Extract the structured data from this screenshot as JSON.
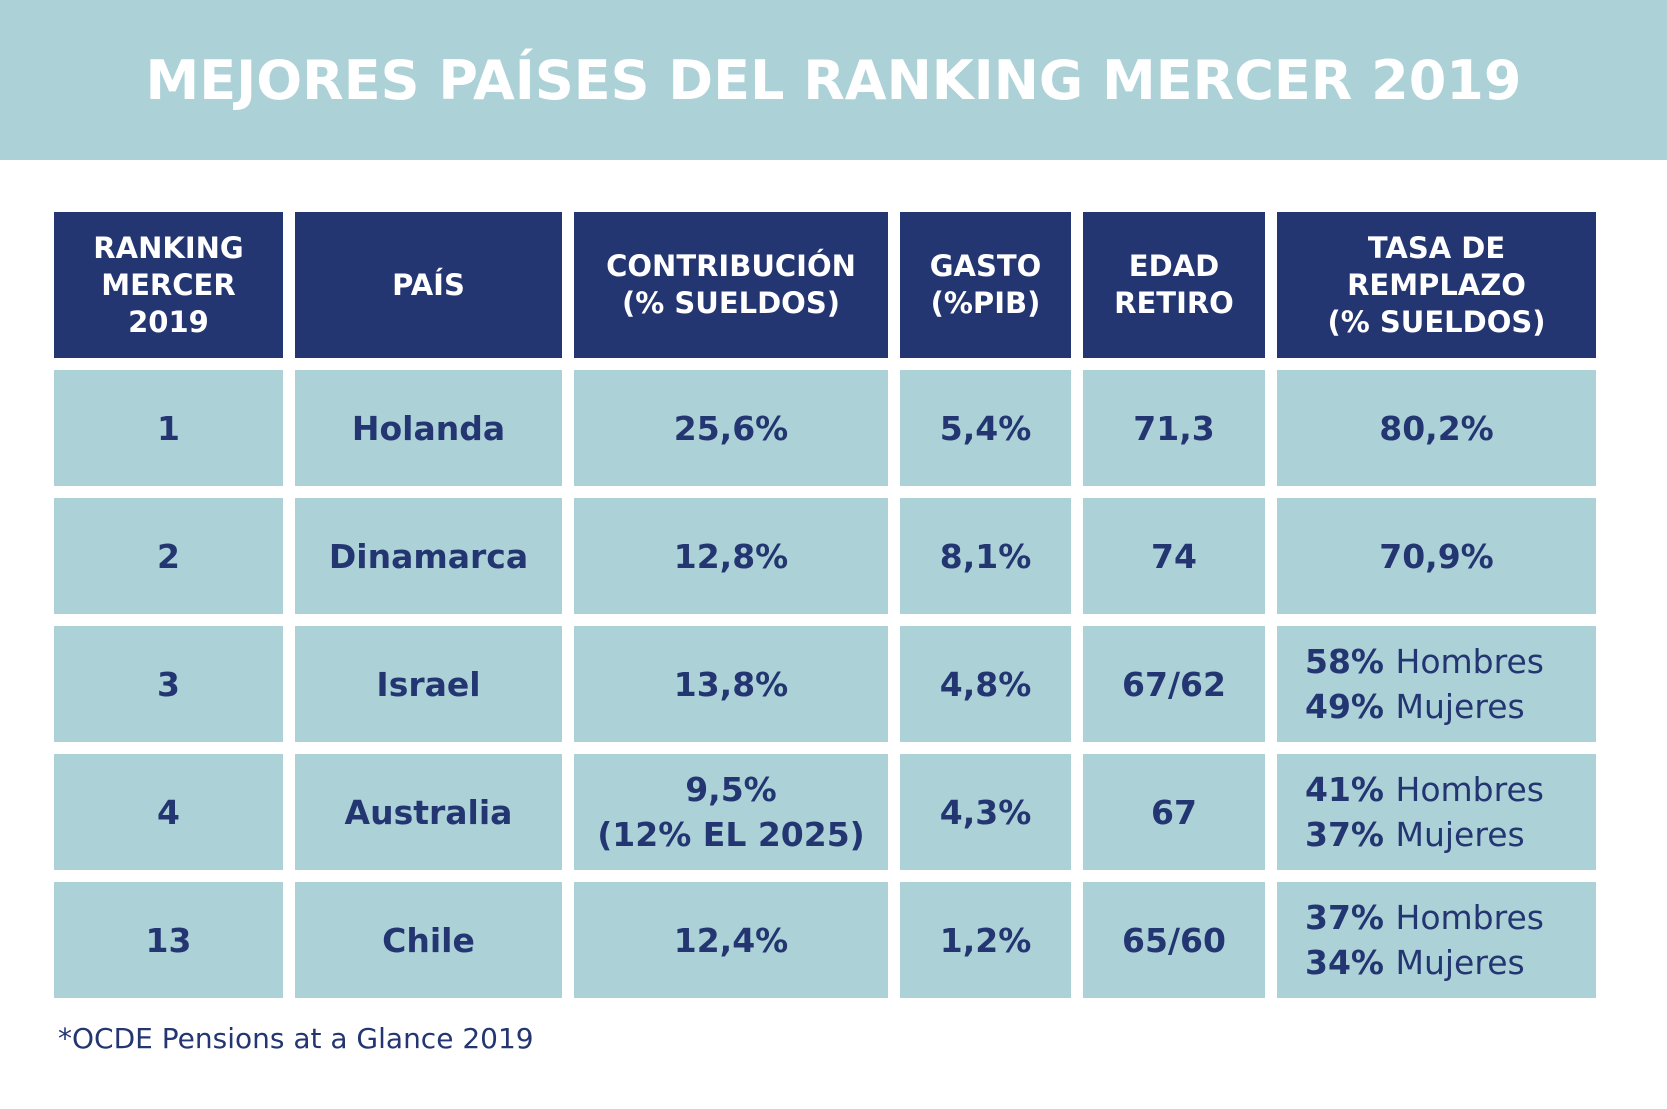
{
  "title": "MEJORES PAÍSES DEL RANKING MERCER 2019",
  "colors": {
    "banner": "#acd2d8",
    "header_bg": "#243671",
    "cell_bg": "#acd2d8",
    "text_dark": "#243671",
    "text_light": "#ffffff"
  },
  "chart_data": {
    "type": "table",
    "title": "MEJORES PAÍSES DEL RANKING MERCER 2019",
    "columns": [
      "RANKING\nMERCER\n2019",
      "PAÍS",
      "CONTRIBUCIÓN\n(% SUELDOS)",
      "GASTO\n(%PIB)",
      "EDAD\nRETIRO",
      "TASA DE\nREMPLAZO\n(% SUELDOS)"
    ],
    "rows": [
      {
        "ranking": "1",
        "pais": "Holanda",
        "contribucion": "25,6%",
        "gasto": "5,4%",
        "edad": "71,3",
        "tasa": [
          {
            "pct": "80,2%",
            "label": ""
          }
        ]
      },
      {
        "ranking": "2",
        "pais": "Dinamarca",
        "contribucion": "12,8%",
        "gasto": "8,1%",
        "edad": "74",
        "tasa": [
          {
            "pct": "70,9%",
            "label": ""
          }
        ]
      },
      {
        "ranking": "3",
        "pais": "Israel",
        "contribucion": "13,8%",
        "gasto": "4,8%",
        "edad": "67/62",
        "tasa": [
          {
            "pct": "58%",
            "label": "Hombres"
          },
          {
            "pct": "49%",
            "label": "Mujeres"
          }
        ]
      },
      {
        "ranking": "4",
        "pais": "Australia",
        "contribucion": "9,5%\n(12% EL 2025)",
        "gasto": "4,3%",
        "edad": "67",
        "tasa": [
          {
            "pct": "41%",
            "label": "Hombres"
          },
          {
            "pct": "37%",
            "label": "Mujeres"
          }
        ]
      },
      {
        "ranking": "13",
        "pais": "Chile",
        "contribucion": "12,4%",
        "gasto": "1,2%",
        "edad": "65/60",
        "tasa": [
          {
            "pct": "37%",
            "label": "Hombres"
          },
          {
            "pct": "34%",
            "label": "Mujeres"
          }
        ]
      }
    ]
  },
  "footnote": "*OCDE Pensions at a Glance 2019"
}
